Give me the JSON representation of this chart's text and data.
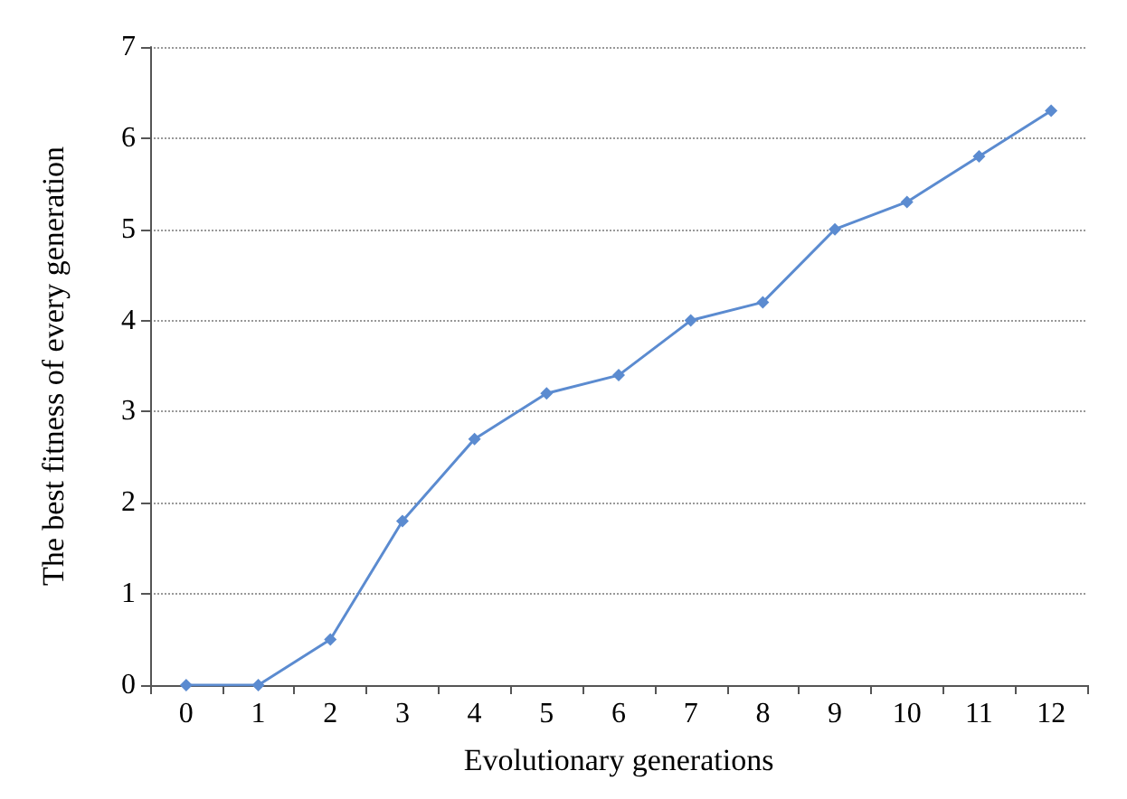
{
  "chart_data": {
    "type": "line",
    "xlabel": "Evolutionary generations",
    "ylabel": "The best fitness of every generation",
    "categories": [
      "0",
      "1",
      "2",
      "3",
      "4",
      "5",
      "6",
      "7",
      "8",
      "9",
      "10",
      "11",
      "12"
    ],
    "series": [
      {
        "color": "#5b8bd0",
        "values": [
          0,
          0,
          0.5,
          1.8,
          2.7,
          3.2,
          3.4,
          4.0,
          4.2,
          5.0,
          5.3,
          5.8,
          6.3
        ]
      }
    ],
    "ylim": [
      0,
      7
    ],
    "yticks": [
      0,
      1,
      2,
      3,
      4,
      5,
      6,
      7
    ],
    "grid": "y",
    "marker": "diamond",
    "line_style": "solid"
  }
}
